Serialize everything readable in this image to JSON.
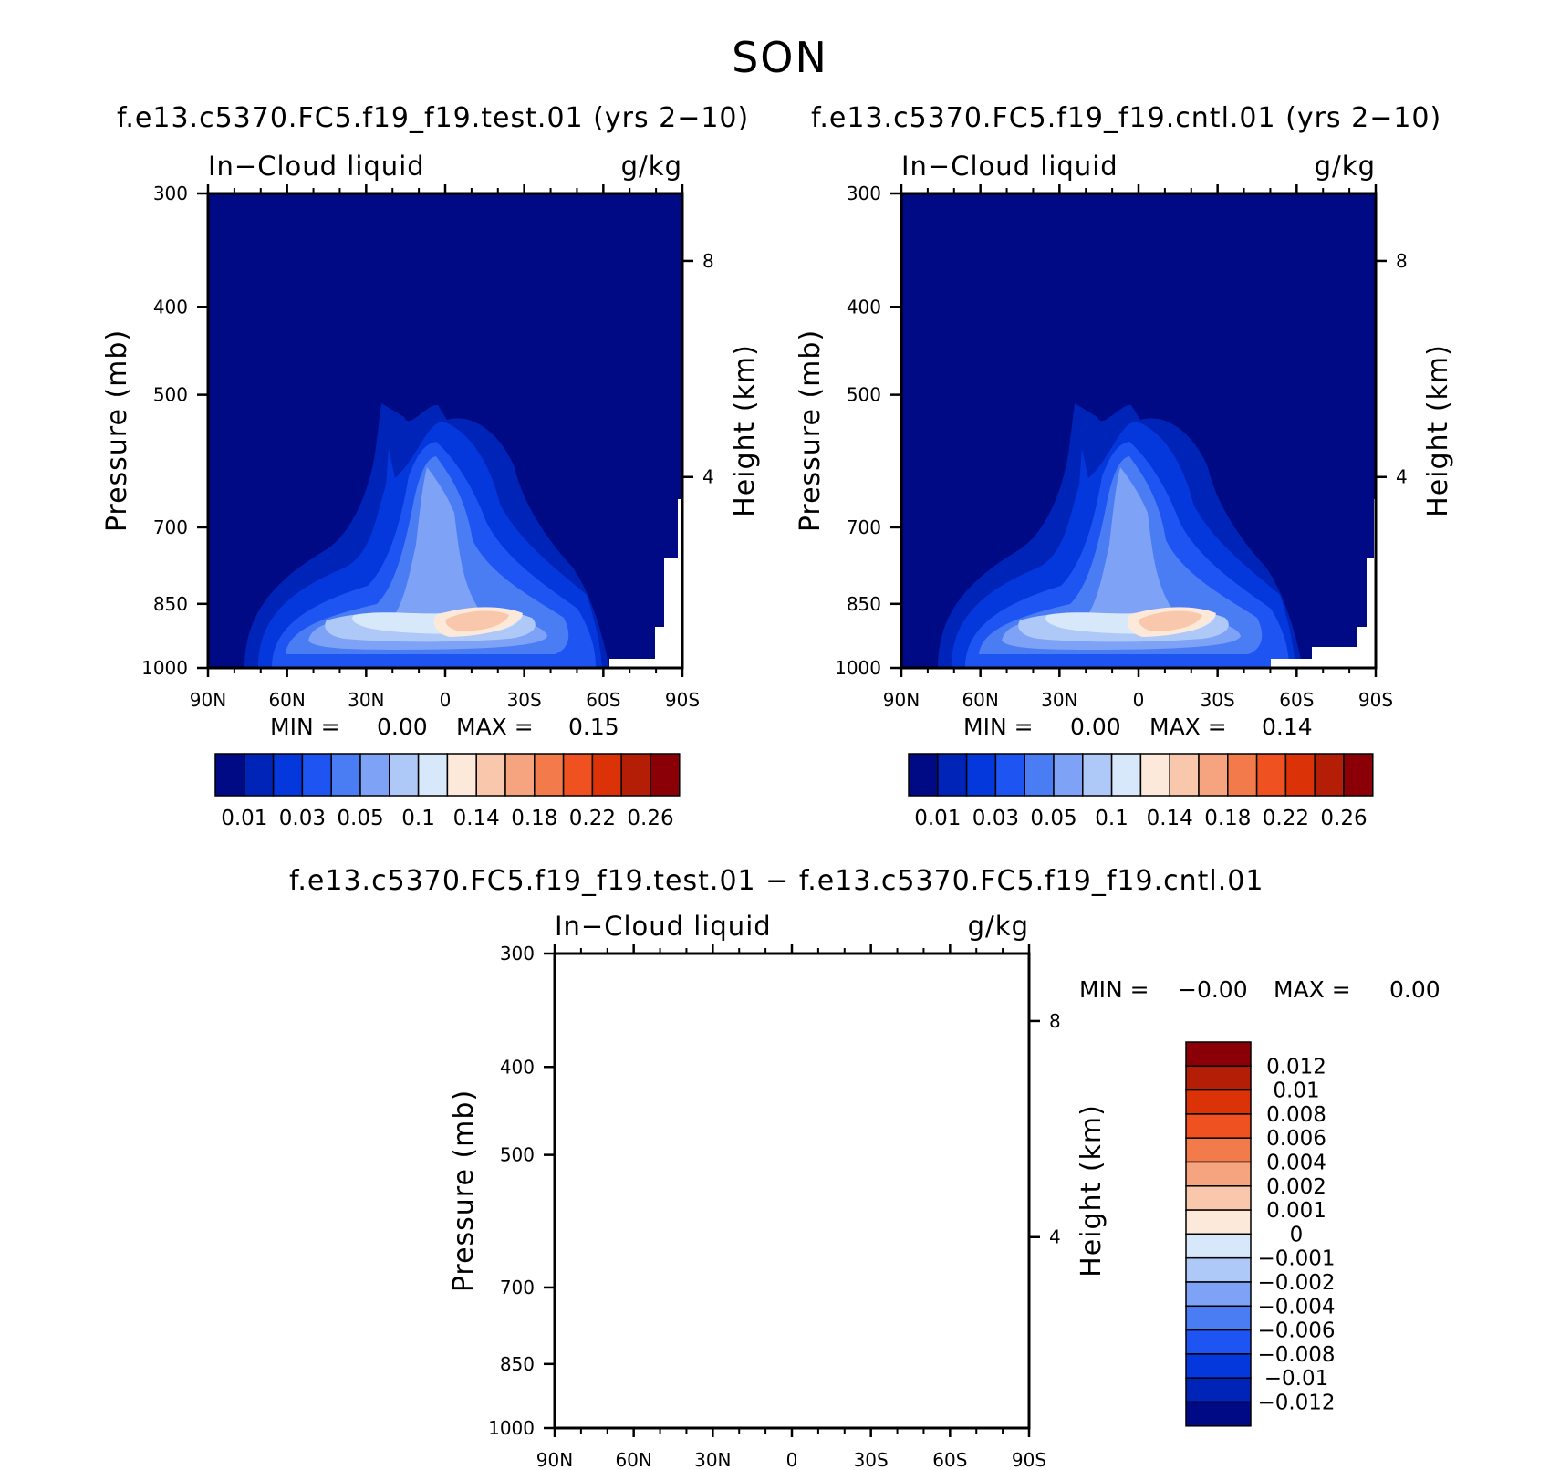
{
  "figure_title": "SON",
  "chart_data": [
    {
      "type": "heatmap",
      "panel": "test",
      "title": "f.e13.c5370.FC5.f19_f19.test.01 (yrs 2−10)",
      "variable_label": "In−Cloud liquid",
      "units_label": "g/kg",
      "ylabel": "Pressure (mb)",
      "y2label": "Height (km)",
      "x_ticks": [
        "90N",
        "60N",
        "30N",
        "0",
        "30S",
        "60S",
        "90S"
      ],
      "y_ticks": [
        "300",
        "400",
        "500",
        "700",
        "850",
        "1000"
      ],
      "y2_ticks": [
        "8",
        "4"
      ],
      "ylim": [
        1000,
        300
      ],
      "stats": {
        "min_label": "MIN =",
        "min_value": "0.00",
        "max_label": "MAX =",
        "max_value": "0.15"
      },
      "colorbar_labels": [
        "0.01",
        "0.03",
        "0.05",
        "0.1",
        "0.14",
        "0.18",
        "0.22",
        "0.26"
      ],
      "colorbar_colors": [
        "#000a84",
        "#0024b8",
        "#0538dc",
        "#1e55f2",
        "#4a7cf4",
        "#7da2f6",
        "#aec8f8",
        "#d7e8fa",
        "#fce9da",
        "#f9c8ac",
        "#f6a37f",
        "#f37a4a",
        "#ef5120",
        "#db3208",
        "#b51e06",
        "#8a0006"
      ]
    },
    {
      "type": "heatmap",
      "panel": "control",
      "title": "f.e13.c5370.FC5.f19_f19.cntl.01 (yrs 2−10)",
      "variable_label": "In−Cloud liquid",
      "units_label": "g/kg",
      "ylabel": "Pressure (mb)",
      "y2label": "Height (km)",
      "x_ticks": [
        "90N",
        "60N",
        "30N",
        "0",
        "30S",
        "60S",
        "90S"
      ],
      "y_ticks": [
        "300",
        "400",
        "500",
        "700",
        "850",
        "1000"
      ],
      "y2_ticks": [
        "8",
        "4"
      ],
      "ylim": [
        1000,
        300
      ],
      "stats": {
        "min_label": "MIN =",
        "min_value": "0.00",
        "max_label": "MAX =",
        "max_value": "0.14"
      },
      "colorbar_labels": [
        "0.01",
        "0.03",
        "0.05",
        "0.1",
        "0.14",
        "0.18",
        "0.22",
        "0.26"
      ],
      "colorbar_colors": [
        "#000a84",
        "#0024b8",
        "#0538dc",
        "#1e55f2",
        "#4a7cf4",
        "#7da2f6",
        "#aec8f8",
        "#d7e8fa",
        "#fce9da",
        "#f9c8ac",
        "#f6a37f",
        "#f37a4a",
        "#ef5120",
        "#db3208",
        "#b51e06",
        "#8a0006"
      ]
    },
    {
      "type": "heatmap",
      "panel": "difference",
      "title": "f.e13.c5370.FC5.f19_f19.test.01 − f.e13.c5370.FC5.f19_f19.cntl.01",
      "variable_label": "In−Cloud liquid",
      "units_label": "g/kg",
      "ylabel": "Pressure (mb)",
      "y2label": "Height (km)",
      "x_ticks": [
        "90N",
        "60N",
        "30N",
        "0",
        "30S",
        "60S",
        "90S"
      ],
      "y_ticks": [
        "300",
        "400",
        "500",
        "700",
        "850",
        "1000"
      ],
      "y2_ticks": [
        "8",
        "4"
      ],
      "ylim": [
        1000,
        300
      ],
      "stats": {
        "min_label": "MIN =",
        "min_value": "−0.00",
        "max_label": "MAX =",
        "max_value": "0.00"
      },
      "colorbar_labels": [
        "0.012",
        "0.01",
        "0.008",
        "0.006",
        "0.004",
        "0.002",
        "0.001",
        "0",
        "−0.001",
        "−0.002",
        "−0.004",
        "−0.006",
        "−0.008",
        "−0.01",
        "−0.012"
      ],
      "colorbar_colors": [
        "#8a0006",
        "#b51e06",
        "#db3208",
        "#ef5120",
        "#f37a4a",
        "#f6a37f",
        "#f9c8ac",
        "#fce9da",
        "#d7e8fa",
        "#aec8f8",
        "#7da2f6",
        "#4a7cf4",
        "#1e55f2",
        "#0538dc",
        "#0024b8",
        "#000a84"
      ]
    }
  ]
}
